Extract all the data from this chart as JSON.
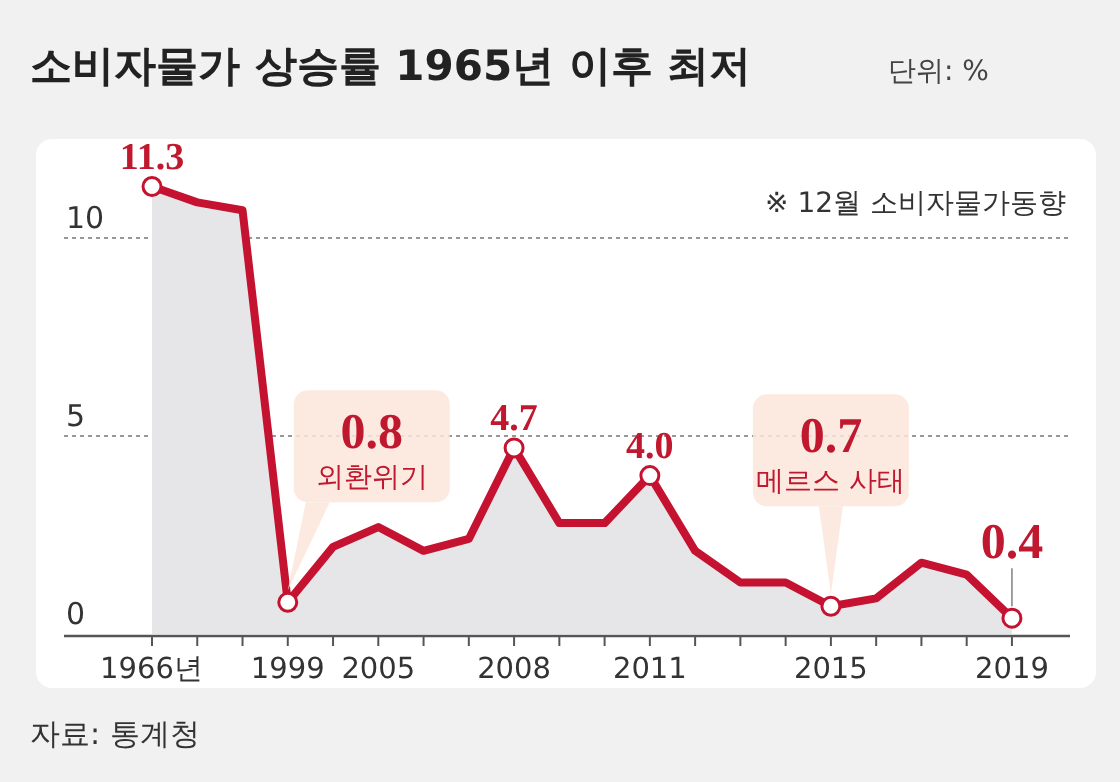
{
  "chart_data": {
    "type": "area",
    "title": "소비자물가 상승률 1965년 이후 최저",
    "subtitle": "단위: %",
    "categories": [
      "1966년",
      null,
      null,
      "1999",
      null,
      "2005",
      null,
      null,
      "2008",
      null,
      null,
      "2011",
      null,
      null,
      null,
      "2015",
      null,
      null,
      null,
      "2019"
    ],
    "series": [
      {
        "color": "#c41230",
        "values": [
          11.3,
          10.9,
          10.7,
          0.8,
          2.2,
          2.7,
          2.1,
          2.4,
          4.7,
          2.8,
          2.8,
          4.0,
          2.1,
          1.3,
          1.3,
          0.7,
          0.9,
          1.8,
          1.5,
          0.4
        ],
        "value_labels": [
          "11.3",
          null,
          null,
          "0.8",
          null,
          null,
          null,
          null,
          "4.7",
          null,
          null,
          "4.0",
          null,
          null,
          null,
          "0.7",
          null,
          null,
          null,
          "0.4"
        ]
      }
    ],
    "ylim": [
      0,
      12.5
    ],
    "yticks": [
      0,
      5,
      10
    ],
    "grid": "y",
    "annotations": [
      "※ 12월 소비자물가동향",
      {
        "text": "외환위기",
        "x": "1999",
        "y": 0.8
      },
      {
        "text": "메르스 사태",
        "x": "2015",
        "y": 0.7
      },
      "자료: 통계청"
    ]
  }
}
